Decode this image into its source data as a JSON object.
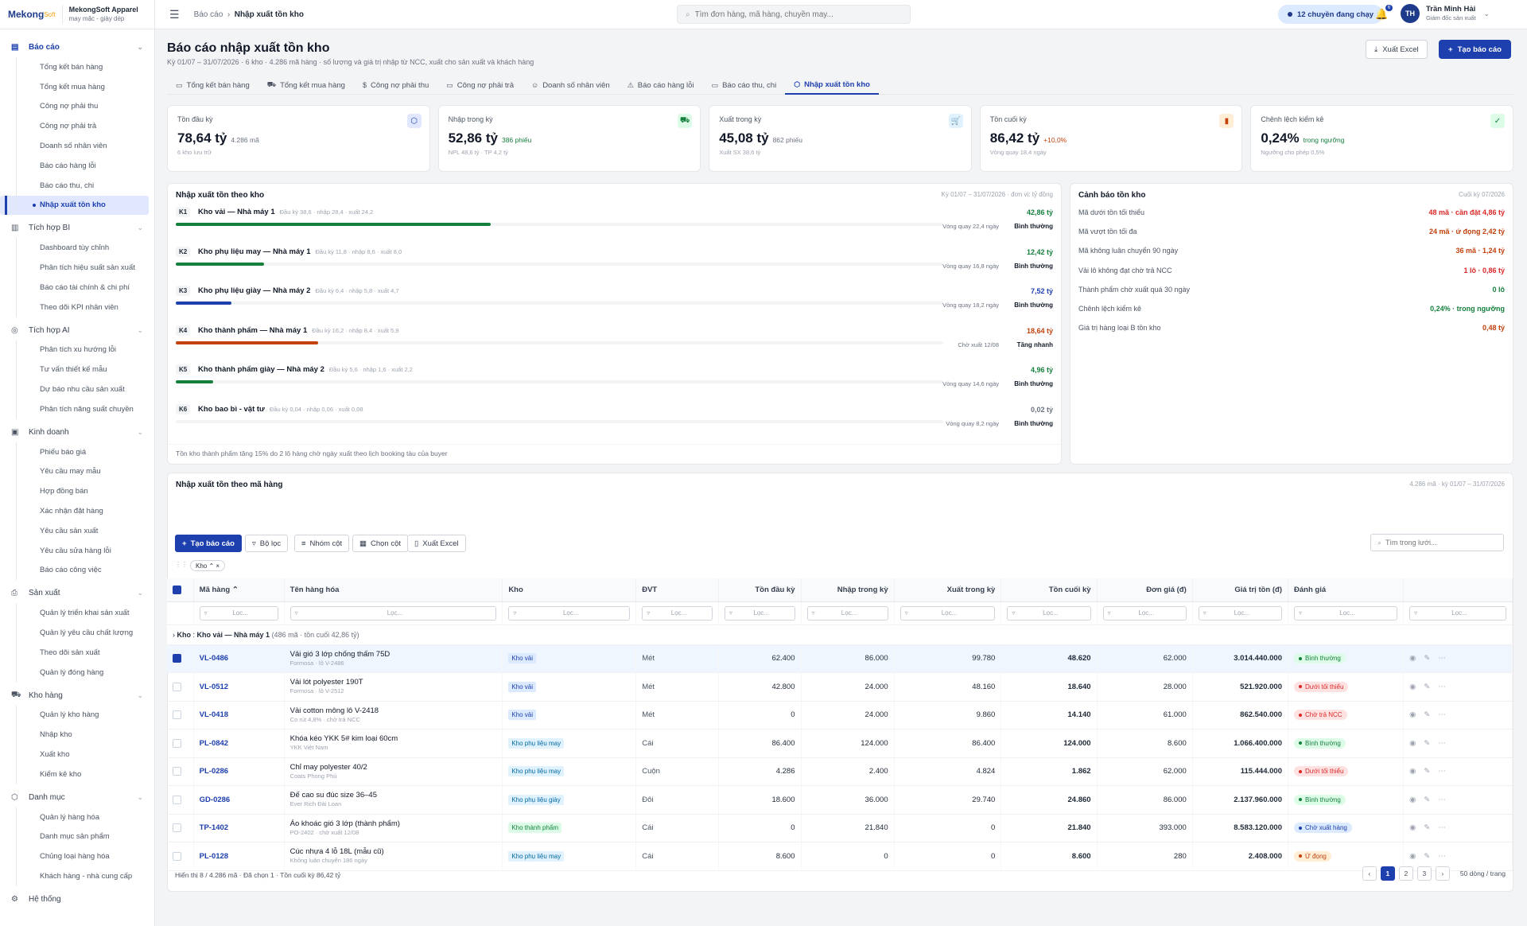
{
  "brand": {
    "logo": "Mekong",
    "logo_suffix": "Soft",
    "company": "MekongSoft Apparel",
    "tagline": "may mặc - giày dép"
  },
  "sidebar": {
    "groups": [
      {
        "label": "Báo cáo",
        "icon": "document-icon",
        "active": true,
        "items": [
          "Tổng kết bán hàng",
          "Tổng kết mua hàng",
          "Công nợ phải thu",
          "Công nợ phải trả",
          "Doanh số nhân viên",
          "Báo cáo hàng lỗi",
          "Báo cáo thu, chi",
          "Nhập xuất tồn kho"
        ],
        "selected": 7
      },
      {
        "label": "Tích hợp BI",
        "icon": "bar-chart-icon",
        "items": [
          "Dashboard tùy chỉnh",
          "Phân tích hiệu suất sản xuất",
          "Báo cáo tài chính & chi phí",
          "Theo dõi KPI nhân viên"
        ]
      },
      {
        "label": "Tích hợp AI",
        "icon": "check-circle-icon",
        "items": [
          "Phân tích xu hướng lỗi",
          "Tư vấn thiết kế mẫu",
          "Dự báo nhu cầu sản xuất",
          "Phân tích năng suất chuyền"
        ]
      },
      {
        "label": "Kinh doanh",
        "icon": "cash-icon",
        "items": [
          "Phiếu báo giá",
          "Yêu cầu may mẫu",
          "Hợp đồng bán",
          "Xác nhận đặt hàng",
          "Yêu cầu sản xuất",
          "Yêu cầu sửa hàng lỗi",
          "Báo cáo công việc"
        ]
      },
      {
        "label": "Sản xuất",
        "icon": "printer-icon",
        "items": [
          "Quản lý triển khai sản xuất",
          "Quản lý yêu cầu chất lượng",
          "Theo dõi sản xuất",
          "Quản lý đóng hàng"
        ]
      },
      {
        "label": "Kho hàng",
        "icon": "truck-icon",
        "items": [
          "Quản lý kho hàng",
          "Nhập kho",
          "Xuất kho",
          "Kiểm kê kho"
        ]
      },
      {
        "label": "Danh mục",
        "icon": "box-icon",
        "items": [
          "Quản lý hàng hóa",
          "Danh mục sản phẩm",
          "Chủng loại hàng hóa",
          "Khách hàng - nhà cung cấp"
        ]
      },
      {
        "label": "Hệ thống",
        "icon": "gear-icon",
        "items": []
      }
    ]
  },
  "topbar": {
    "crumb_parent": "Báo cáo",
    "crumb_current": "Nhập xuất tồn kho",
    "search_placeholder": "Tìm đơn hàng, mã hàng, chuyền may...",
    "lines_pill": "12 chuyền đang chạy",
    "notif_count": "6",
    "user_initials": "TH",
    "user_name": "Trần Minh Hải",
    "user_role": "Giám đốc sản xuất"
  },
  "page": {
    "title": "Báo cáo nhập xuất tồn kho",
    "subtitle": "Kỳ 01/07 – 31/07/2026 · 6 kho · 4.286 mã hàng · số lượng và giá trị nhập từ NCC, xuất cho sản xuất và khách hàng",
    "export_label": "Xuất Excel",
    "create_label": "Tạo báo cáo"
  },
  "tabs": [
    {
      "label": "Tổng kết bán hàng",
      "icon": "▭"
    },
    {
      "label": "Tổng kết mua hàng",
      "icon": "⛟"
    },
    {
      "label": "Công nợ phải thu",
      "icon": "$"
    },
    {
      "label": "Công nợ phải trả",
      "icon": "▭"
    },
    {
      "label": "Doanh số nhân viên",
      "icon": "☺"
    },
    {
      "label": "Báo cáo hàng lỗi",
      "icon": "⚠"
    },
    {
      "label": "Báo cáo thu, chi",
      "icon": "▭"
    },
    {
      "label": "Nhập xuất tồn kho",
      "icon": "⬡",
      "active": true
    }
  ],
  "kpis": [
    {
      "label": "Tồn đầu kỳ",
      "value": "78,64 tỷ",
      "extra": "4.286 mã",
      "foot": "6 kho lưu trữ",
      "icon": "⬡",
      "icon_bg": "#e0e7ff",
      "icon_color": "#1e40af",
      "extra_color": "#6b7280"
    },
    {
      "label": "Nhập trong kỳ",
      "value": "52,86 tỷ",
      "extra": "386 phiếu",
      "foot": "NPL 48,6 tỷ · TP 4,2 tỷ",
      "icon": "⛟",
      "icon_bg": "#dcfce7",
      "icon_color": "#15803d",
      "extra_color": "#15803d"
    },
    {
      "label": "Xuất trong kỳ",
      "value": "45,08 tỷ",
      "extra": "862 phiếu",
      "foot": "Xuất SX 38,6 tỷ",
      "icon": "🛒",
      "icon_bg": "#e0f2fe",
      "icon_color": "#0369a1",
      "extra_color": "#6b7280"
    },
    {
      "label": "Tồn cuối kỳ",
      "value": "86,42 tỷ",
      "extra": "+10,0%",
      "foot": "Vòng quay 18,4 ngày",
      "icon": "▮",
      "icon_bg": "#ffedd5",
      "icon_color": "#c2410c",
      "extra_color": "#c2410c"
    },
    {
      "label": "Chênh lệch kiểm kê",
      "value": "0,24%",
      "extra": "trong ngưỡng",
      "foot": "Ngưỡng cho phép 0,5%",
      "icon": "✓",
      "icon_bg": "#dcfce7",
      "icon_color": "#15803d",
      "extra_color": "#15803d"
    }
  ],
  "warehouses": {
    "title": "Nhập xuất tồn theo kho",
    "range": "Kỳ 01/07 – 31/07/2026 · đơn vị: tỷ đồng",
    "note": "Tồn kho thành phẩm tăng 15% do 2 lô hàng chờ ngày xuất theo lịch booking tàu của buyer",
    "rows": [
      {
        "code": "K1",
        "name": "Kho vải — Nhà máy 1",
        "detail": "Đầu kỳ 38,6 · nhập 28,4 · xuất 24,2",
        "value": "42,86 tỷ",
        "fill": 0.41,
        "color": "#15803d",
        "turn": "Vòng quay 22,4 ngày",
        "status": "Bình thường",
        "status_color": "#111827"
      },
      {
        "code": "K2",
        "name": "Kho phụ liệu may — Nhà máy 1",
        "detail": "Đầu kỳ 11,8 · nhập 8,6 · xuất 8,0",
        "value": "12,42 tỷ",
        "fill": 0.115,
        "color": "#15803d",
        "turn": "Vòng quay 16,8 ngày",
        "status": "Bình thường",
        "status_color": "#111827"
      },
      {
        "code": "K3",
        "name": "Kho phụ liệu giày — Nhà máy 2",
        "detail": "Đầu kỳ 6,4 · nhập 5,8 · xuất 4,7",
        "value": "7,52 tỷ",
        "fill": 0.073,
        "color": "#1e40af",
        "turn": "Vòng quay 18,2 ngày",
        "status": "Bình thường",
        "status_color": "#111827"
      },
      {
        "code": "K4",
        "name": "Kho thành phẩm — Nhà máy 1",
        "detail": "Đầu kỳ 16,2 · nhập 8,4 · xuất 5,9",
        "value": "18,64 tỷ",
        "fill": 0.185,
        "color": "#c2410c",
        "turn": "Chờ xuất 12/08",
        "status": "Tăng nhanh",
        "status_color": "#111827"
      },
      {
        "code": "K5",
        "name": "Kho thành phẩm giày — Nhà máy 2",
        "detail": "Đầu kỳ 5,6 · nhập 1,6 · xuất 2,2",
        "value": "4,96 tỷ",
        "fill": 0.049,
        "color": "#15803d",
        "turn": "Vòng quay 14,6 ngày",
        "status": "Bình thường",
        "status_color": "#111827"
      },
      {
        "code": "K6",
        "name": "Kho bao bì - vật tư",
        "detail": "Đầu kỳ 0,04 · nhập 0,06 · xuất 0,08",
        "value": "0,02 tỷ",
        "fill": 0,
        "color": "#6b7280",
        "turn": "Vòng quay 8,2 ngày",
        "status": "Bình thường",
        "status_color": "#111827"
      }
    ]
  },
  "alerts": {
    "title": "Cảnh báo tồn kho",
    "period": "Cuối kỳ 07/2026",
    "rows": [
      {
        "label": "Mã dưới tồn tối thiểu",
        "value": "48 mã · cần đặt 4,86 tỷ",
        "color": "#dc2626"
      },
      {
        "label": "Mã vượt tồn tối đa",
        "value": "24 mã · ứ đọng 2,42 tỷ",
        "color": "#c2410c"
      },
      {
        "label": "Mã không luân chuyển 90 ngày",
        "value": "36 mã · 1,24 tỷ",
        "color": "#c2410c"
      },
      {
        "label": "Vải lô không đạt chờ trả NCC",
        "value": "1 lô · 0,86 tỷ",
        "color": "#dc2626"
      },
      {
        "label": "Thành phẩm chờ xuất quá 30 ngày",
        "value": "0 lô",
        "color": "#15803d"
      },
      {
        "label": "Chênh lệch kiểm kê",
        "value": "0,24% · trong ngưỡng",
        "color": "#15803d"
      },
      {
        "label": "Giá trị hàng loại B tồn kho",
        "value": "0,48 tỷ",
        "color": "#c2410c"
      }
    ]
  },
  "grid": {
    "title": "Nhập xuất tồn theo mã hàng",
    "range": "4.286 mã · kỳ 01/07 – 31/07/2026",
    "toolbar": {
      "create": "Tạo báo cáo",
      "filter": "Bộ lọc",
      "group": "Nhóm cột",
      "columns": "Chọn cột",
      "export": "Xuất Excel",
      "search_placeholder": "Tìm trong lưới..."
    },
    "chip": "Kho",
    "filter_placeholder": "Lọc...",
    "columns": [
      "Mã hàng",
      "Tên hàng hóa",
      "Kho",
      "ĐVT",
      "Tồn đầu kỳ",
      "Nhập trong kỳ",
      "Xuất trong kỳ",
      "Tồn cuối kỳ",
      "Đơn giá (đ)",
      "Giá trị tồn (đ)",
      "Đánh giá"
    ],
    "group_row": {
      "label": "Kho",
      "value": "Kho vải — Nhà máy 1",
      "info": "(486 mã · tồn cuối 42,86 tỷ)"
    },
    "rows": [
      {
        "code": "VL-0486",
        "name": "Vải gió 3 lớp chống thấm 75D",
        "sub": "Formosa · lô V-2486",
        "wh": "Kho vải",
        "wh_bg": "#dbeafe",
        "wh_color": "#1e40af",
        "unit": "Mét",
        "open": "62.400",
        "in": "86.000",
        "out": "99.780",
        "close": "48.620",
        "price": "62.000",
        "value": "3.014.440.000",
        "status": "Bình thường",
        "st_bg": "#dcfce7",
        "st_color": "#15803d",
        "checked": true
      },
      {
        "code": "VL-0512",
        "name": "Vải lót polyester 190T",
        "sub": "Formosa · lô V-2512",
        "wh": "Kho vải",
        "wh_bg": "#dbeafe",
        "wh_color": "#1e40af",
        "unit": "Mét",
        "open": "42.800",
        "in": "24.000",
        "out": "48.160",
        "close": "18.640",
        "price": "28.000",
        "value": "521.920.000",
        "status": "Dưới tối thiểu",
        "st_bg": "#fee2e2",
        "st_color": "#dc2626"
      },
      {
        "code": "VL-0418",
        "name": "Vải cotton mông lô V-2418",
        "sub": "Co rút 4,8% · chờ trả NCC",
        "wh": "Kho vải",
        "wh_bg": "#dbeafe",
        "wh_color": "#1e40af",
        "unit": "Mét",
        "open": "0",
        "in": "24.000",
        "out": "9.860",
        "close": "14.140",
        "price": "61.000",
        "value": "862.540.000",
        "status": "Chờ trả NCC",
        "st_bg": "#fee2e2",
        "st_color": "#dc2626"
      },
      {
        "code": "PL-0842",
        "name": "Khóa kéo YKK 5# kim loại 60cm",
        "sub": "YKK Việt Nam",
        "wh": "Kho phụ liệu may",
        "wh_bg": "#e0f2fe",
        "wh_color": "#0369a1",
        "unit": "Cái",
        "open": "86.400",
        "in": "124.000",
        "out": "86.400",
        "close": "124.000",
        "price": "8.600",
        "value": "1.066.400.000",
        "status": "Bình thường",
        "st_bg": "#dcfce7",
        "st_color": "#15803d"
      },
      {
        "code": "PL-0286",
        "name": "Chỉ may polyester 40/2",
        "sub": "Coats Phong Phú",
        "wh": "Kho phụ liệu may",
        "wh_bg": "#e0f2fe",
        "wh_color": "#0369a1",
        "unit": "Cuộn",
        "open": "4.286",
        "in": "2.400",
        "out": "4.824",
        "close": "1.862",
        "price": "62.000",
        "value": "115.444.000",
        "status": "Dưới tối thiểu",
        "st_bg": "#fee2e2",
        "st_color": "#dc2626"
      },
      {
        "code": "GD-0286",
        "name": "Đế cao su đúc size 36–45",
        "sub": "Ever Rich Đài Loan",
        "wh": "Kho phụ liệu giày",
        "wh_bg": "#e0f2fe",
        "wh_color": "#0369a1",
        "unit": "Đôi",
        "open": "18.600",
        "in": "36.000",
        "out": "29.740",
        "close": "24.860",
        "price": "86.000",
        "value": "2.137.960.000",
        "status": "Bình thường",
        "st_bg": "#dcfce7",
        "st_color": "#15803d"
      },
      {
        "code": "TP-1402",
        "name": "Áo khoác gió 3 lớp (thành phẩm)",
        "sub": "PO-2402 · chờ xuất 12/08",
        "wh": "Kho thành phẩm",
        "wh_bg": "#dcfce7",
        "wh_color": "#15803d",
        "unit": "Cái",
        "open": "0",
        "in": "21.840",
        "out": "0",
        "close": "21.840",
        "price": "393.000",
        "value": "8.583.120.000",
        "status": "Chờ xuất hàng",
        "st_bg": "#dbeafe",
        "st_color": "#1e40af"
      },
      {
        "code": "PL-0128",
        "name": "Cúc nhựa 4 lỗ 18L (mẫu cũ)",
        "sub": "Không luân chuyển 186 ngày",
        "wh": "Kho phụ liệu may",
        "wh_bg": "#e0f2fe",
        "wh_color": "#0369a1",
        "unit": "Cái",
        "open": "8.600",
        "in": "0",
        "out": "0",
        "close": "8.600",
        "price": "280",
        "value": "2.408.000",
        "status": "Ứ đọng",
        "st_bg": "#ffedd5",
        "st_color": "#c2410c"
      }
    ],
    "footer": "Hiển thị 8 / 4.286 mã · Đã chọn 1 · Tồn cuối kỳ 86,42 tỷ",
    "pages": [
      "1",
      "2",
      "3"
    ],
    "per_page": "50 dòng / trang"
  }
}
